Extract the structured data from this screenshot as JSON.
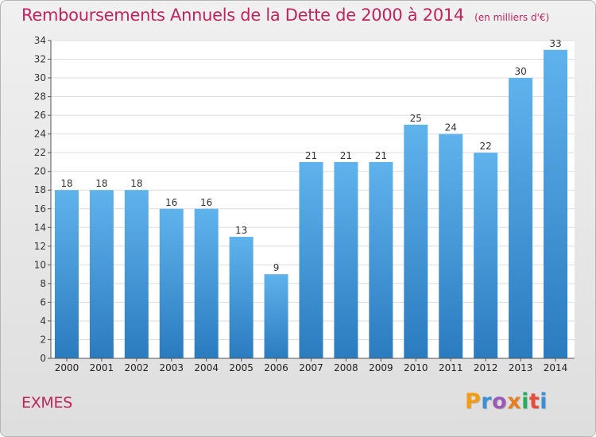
{
  "header": {
    "title": "Remboursements Annuels de la Dette de 2000 à 2014",
    "subtitle": "(en milliers d'€)"
  },
  "footer": {
    "commune": "EXMES",
    "logo_text": "Proxiti"
  },
  "colors": {
    "title": "#c0245c",
    "bar_top": "#5fb3ec",
    "bar_bottom": "#2b7bbf",
    "logo_letters": [
      "#f39c12",
      "#3a8fd9",
      "#9b59b6",
      "#e67e22",
      "#27ae60",
      "#e74c3c",
      "#3a8fd9"
    ]
  },
  "chart_data": {
    "type": "bar",
    "title": "Remboursements Annuels de la Dette de 2000 à 2014",
    "subtitle": "(en milliers d'€)",
    "categories": [
      "2000",
      "2001",
      "2002",
      "2003",
      "2004",
      "2005",
      "2006",
      "2007",
      "2008",
      "2009",
      "2010",
      "2011",
      "2012",
      "2013",
      "2014"
    ],
    "values": [
      18,
      18,
      18,
      16,
      16,
      13,
      9,
      21,
      21,
      21,
      25,
      24,
      22,
      30,
      33
    ],
    "xlabel": "",
    "ylabel": "",
    "ylim": [
      0,
      34
    ],
    "yticks": [
      0,
      2,
      4,
      6,
      8,
      10,
      12,
      14,
      16,
      18,
      20,
      22,
      24,
      26,
      28,
      30,
      32,
      34
    ],
    "grid": true,
    "data_labels": true,
    "legend": "none"
  }
}
